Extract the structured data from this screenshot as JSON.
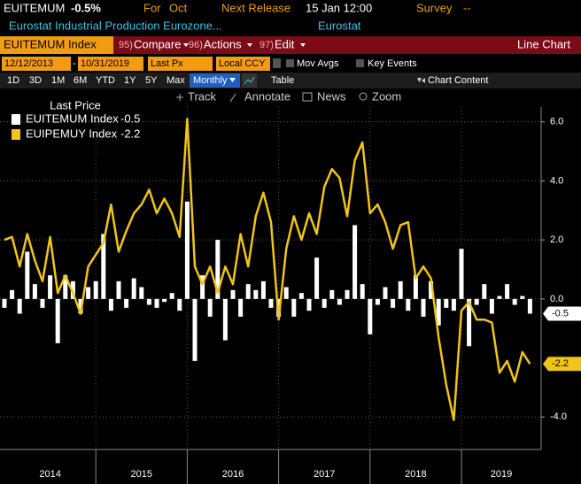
{
  "header": {
    "ticker": "EUITEMUM",
    "change": "-0.5%",
    "period_label": "For",
    "period": "Oct",
    "release_label": "Next Release",
    "release": "15 Jan 12:00",
    "survey_label": "Survey",
    "survey": "--",
    "description": "Eurostat Industrial Production Eurozone...",
    "source": "Eurostat"
  },
  "toolbar": {
    "security": "EUITEMUM Index",
    "menus": [
      {
        "key": "95)",
        "label": "Compare"
      },
      {
        "key": "96)",
        "label": "Actions"
      },
      {
        "key": "97)",
        "label": "Edit"
      }
    ],
    "chart_type": "Line Chart"
  },
  "settings": {
    "start": "12/12/2013",
    "separator": "-",
    "end": "10/31/2019",
    "field": "Last Px",
    "currency": "Local CCY",
    "options": [
      "Mov Avgs",
      "Key Events"
    ]
  },
  "periods": [
    "1D",
    "3D",
    "1M",
    "6M",
    "YTD",
    "1Y",
    "5Y",
    "Max"
  ],
  "frequency": "Monthly",
  "view": "Table",
  "content": "Chart Content",
  "tools": [
    "Track",
    "Annotate",
    "News",
    "Zoom"
  ],
  "chart_data": {
    "type": "line",
    "legend_title": "Last Price",
    "year_labels": [
      "2014",
      "2015",
      "2016",
      "2017",
      "2018",
      "2019"
    ],
    "series": [
      {
        "name": "EUITEMUM Index",
        "type": "bar",
        "color": "#ffffff",
        "values": [
          -0.3,
          0.3,
          -0.5,
          1.6,
          0.5,
          -0.3,
          0.8,
          -1.5,
          0.8,
          0.6,
          -0.5,
          0.4,
          0.6,
          2.2,
          -0.4,
          0.6,
          -0.3,
          0.7,
          0.4,
          -0.2,
          -0.3,
          -0.1,
          0.2,
          -0.4,
          3.3,
          -2.1,
          0.8,
          -0.6,
          2.0,
          -1.4,
          0.3,
          -0.6,
          0.5,
          0.3,
          0.6,
          -0.3,
          -0.6,
          0.4,
          -0.6,
          0.2,
          -0.4,
          1.4,
          -0.3,
          0.3,
          -0.2,
          0.3,
          2.5,
          0.5,
          -1.2,
          -0.2,
          0.4,
          -0.3,
          0.6,
          -0.4,
          0.8,
          -0.6,
          0.6,
          -0.9,
          -0.3,
          -0.4,
          1.7,
          -1.6,
          -0.2,
          0.5,
          -0.5,
          0.1,
          0.5,
          -0.2,
          0.1,
          -0.5
        ]
      },
      {
        "name": "EUIPEMUY Index",
        "type": "line",
        "color": "#f0c419",
        "values": [
          2.0,
          2.1,
          1.1,
          2.2,
          1.3,
          0.6,
          2.1,
          0.2,
          0.8,
          0.2,
          -0.5,
          1.1,
          1.5,
          1.9,
          3.2,
          1.6,
          2.3,
          2.9,
          3.2,
          3.7,
          2.9,
          3.4,
          2.9,
          2.1,
          6.1,
          1.1,
          0.5,
          1.1,
          0.2,
          1.1,
          0.5,
          2.2,
          1.1,
          2.8,
          3.6,
          2.6,
          -0.7,
          1.7,
          2.8,
          2.0,
          2.9,
          2.2,
          3.8,
          4.4,
          4.1,
          2.8,
          4.7,
          5.3,
          2.9,
          3.2,
          2.6,
          1.7,
          2.5,
          2.6,
          0.7,
          1.1,
          0.7,
          -1.3,
          -2.9,
          -4.1,
          -0.4,
          -0.1,
          -0.7,
          -0.7,
          -0.8,
          -2.5,
          -2.1,
          -2.8,
          -1.8,
          -2.2
        ]
      }
    ],
    "ylim": [
      -5.1,
      6.5
    ],
    "yticks": [
      {
        "value": 6,
        "label": "6.0"
      },
      {
        "value": 4,
        "label": "4.0"
      },
      {
        "value": 2,
        "label": "2.0"
      },
      {
        "value": 0,
        "label": "0.0"
      },
      {
        "value": -4,
        "label": "-4.0"
      }
    ],
    "grid": true
  }
}
